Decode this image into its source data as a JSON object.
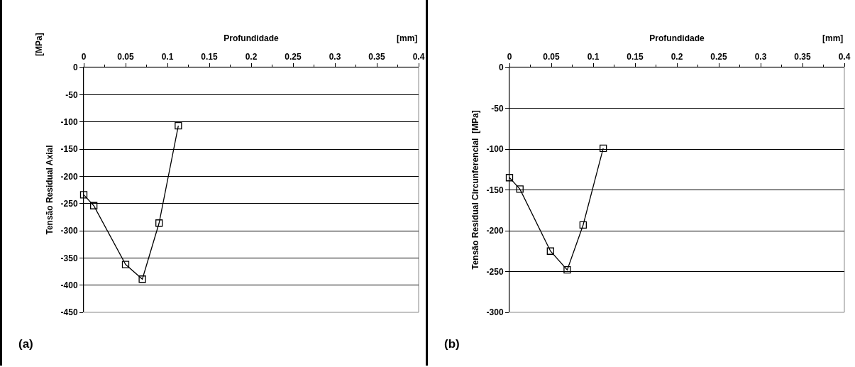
{
  "chart_data": [
    {
      "type": "line",
      "xlabel": "Profundidade",
      "ylabel": "Tensão Residual Axial",
      "annotations": [
        "[mm]",
        "[MPa]",
        "(a)"
      ],
      "x": [
        0,
        0.012,
        0.05,
        0.07,
        0.09,
        0.113
      ],
      "series": [
        {
          "color": "#000000",
          "values": [
            -234,
            -254,
            -362,
            -389,
            -286,
            -107
          ]
        }
      ],
      "xlim": [
        0,
        0.4
      ],
      "xticks": [
        0,
        0.05,
        0.1,
        0.15,
        0.2,
        0.25,
        0.3,
        0.35,
        0.4
      ],
      "ylim": [
        -450,
        0
      ],
      "yticks": [
        0,
        -50,
        -100,
        -150,
        -200,
        -250,
        -300,
        -350,
        -400,
        -450
      ],
      "grid": "y",
      "marker": "square",
      "line_style": "solid"
    },
    {
      "type": "line",
      "xlabel": "Profundidade",
      "ylabel": "Tensão Residual Circunferencial  [MPa]",
      "annotations": [
        "[mm]",
        "(b)"
      ],
      "x": [
        0,
        0.0125,
        0.049,
        0.069,
        0.088,
        0.112
      ],
      "series": [
        {
          "color": "#000000",
          "values": [
            -135,
            -149,
            -225,
            -248,
            -193,
            -99
          ]
        }
      ],
      "xlim": [
        0,
        0.4
      ],
      "xticks": [
        0,
        0.05,
        0.1,
        0.15,
        0.2,
        0.25,
        0.3,
        0.35,
        0.4
      ],
      "ylim": [
        -300,
        0
      ],
      "yticks": [
        0,
        -50,
        -100,
        -150,
        -200,
        -250,
        -300
      ],
      "grid": "y",
      "marker": "square",
      "line_style": "solid"
    }
  ]
}
